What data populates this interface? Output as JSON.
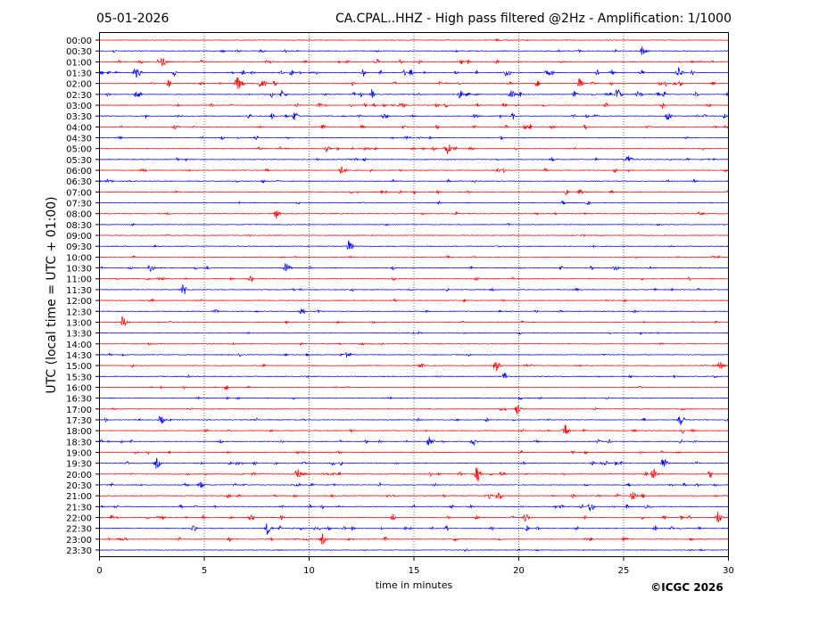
{
  "chart_data": {
    "type": "line",
    "title_left": "05-01-2026",
    "title_right": "CA.CPAL..HHZ - High pass filtered @2Hz - Amplification: 1/1000",
    "xlabel": "time in minutes",
    "ylabel": "UTC (local time = UTC + 01:00)",
    "xlim": [
      0,
      30
    ],
    "x_ticks": [
      "0",
      "5",
      "10",
      "15",
      "20",
      "25",
      "30"
    ],
    "grid_minutes": [
      5,
      10,
      15,
      20,
      25
    ],
    "row_labels": [
      "00:00",
      "00:30",
      "01:00",
      "01:30",
      "02:00",
      "02:30",
      "03:00",
      "03:30",
      "04:00",
      "04:30",
      "05:00",
      "05:30",
      "06:00",
      "06:30",
      "07:00",
      "07:30",
      "08:00",
      "08:30",
      "09:00",
      "09:30",
      "10:00",
      "10:30",
      "11:00",
      "11:30",
      "12:00",
      "12:30",
      "13:00",
      "13:30",
      "14:00",
      "14:30",
      "15:00",
      "15:30",
      "16:00",
      "16:30",
      "17:00",
      "17:30",
      "18:00",
      "18:30",
      "19:00",
      "19:30",
      "20:00",
      "20:30",
      "21:00",
      "21:30",
      "22:00",
      "22:30",
      "23:00",
      "23:30"
    ],
    "row_activity": [
      0.1,
      0.5,
      0.9,
      1.3,
      1.1,
      1.3,
      1.0,
      0.9,
      0.8,
      0.5,
      0.7,
      0.6,
      0.6,
      0.5,
      0.5,
      0.3,
      0.3,
      0.15,
      0.1,
      0.15,
      0.4,
      0.6,
      0.6,
      0.4,
      0.3,
      0.4,
      0.4,
      0.3,
      0.3,
      0.3,
      0.4,
      0.3,
      0.4,
      0.3,
      0.3,
      0.5,
      0.5,
      0.7,
      0.6,
      0.8,
      0.9,
      0.7,
      0.7,
      0.8,
      0.9,
      0.9,
      0.8,
      0.3
    ],
    "events": [
      {
        "row": 1,
        "minute": 25.9,
        "amp": 5
      },
      {
        "row": 2,
        "minute": 3.0,
        "amp": 5
      },
      {
        "row": 3,
        "minute": 1.7,
        "amp": 6
      },
      {
        "row": 3,
        "minute": 27.6,
        "amp": 6
      },
      {
        "row": 4,
        "minute": 6.6,
        "amp": 6
      },
      {
        "row": 4,
        "minute": 22.9,
        "amp": 5
      },
      {
        "row": 5,
        "minute": 19.6,
        "amp": 6
      },
      {
        "row": 5,
        "minute": 24.7,
        "amp": 7
      },
      {
        "row": 7,
        "minute": 27.1,
        "amp": 6
      },
      {
        "row": 7,
        "minute": 9.3,
        "amp": 5
      },
      {
        "row": 10,
        "minute": 16.6,
        "amp": 6
      },
      {
        "row": 10,
        "minute": 10.8,
        "amp": 4
      },
      {
        "row": 11,
        "minute": 25.2,
        "amp": 5
      },
      {
        "row": 12,
        "minute": 11.5,
        "amp": 5
      },
      {
        "row": 14,
        "minute": 22.9,
        "amp": 4
      },
      {
        "row": 16,
        "minute": 8.4,
        "amp": 6
      },
      {
        "row": 19,
        "minute": 11.9,
        "amp": 8
      },
      {
        "row": 21,
        "minute": 2.4,
        "amp": 5
      },
      {
        "row": 21,
        "minute": 8.9,
        "amp": 6
      },
      {
        "row": 23,
        "minute": 4.0,
        "amp": 6
      },
      {
        "row": 25,
        "minute": 9.6,
        "amp": 4
      },
      {
        "row": 26,
        "minute": 1.1,
        "amp": 7
      },
      {
        "row": 29,
        "minute": 11.8,
        "amp": 4
      },
      {
        "row": 30,
        "minute": 18.9,
        "amp": 9
      },
      {
        "row": 30,
        "minute": 29.6,
        "amp": 5
      },
      {
        "row": 31,
        "minute": 19.3,
        "amp": 4
      },
      {
        "row": 34,
        "minute": 19.9,
        "amp": 6
      },
      {
        "row": 35,
        "minute": 2.9,
        "amp": 5
      },
      {
        "row": 35,
        "minute": 27.7,
        "amp": 6
      },
      {
        "row": 36,
        "minute": 22.2,
        "amp": 8
      },
      {
        "row": 37,
        "minute": 15.7,
        "amp": 6
      },
      {
        "row": 37,
        "minute": 17.8,
        "amp": 5
      },
      {
        "row": 39,
        "minute": 2.7,
        "amp": 6
      },
      {
        "row": 39,
        "minute": 26.9,
        "amp": 6
      },
      {
        "row": 40,
        "minute": 9.4,
        "amp": 7
      },
      {
        "row": 40,
        "minute": 18.0,
        "amp": 8
      },
      {
        "row": 40,
        "minute": 26.4,
        "amp": 6
      },
      {
        "row": 41,
        "minute": 4.8,
        "amp": 4
      },
      {
        "row": 42,
        "minute": 25.4,
        "amp": 5
      },
      {
        "row": 42,
        "minute": 19.0,
        "amp": 5
      },
      {
        "row": 43,
        "minute": 23.4,
        "amp": 6
      },
      {
        "row": 44,
        "minute": 29.5,
        "amp": 7
      },
      {
        "row": 44,
        "minute": 20.3,
        "amp": 5
      },
      {
        "row": 45,
        "minute": 8.0,
        "amp": 7
      },
      {
        "row": 46,
        "minute": 10.6,
        "amp": 4
      }
    ],
    "colors": {
      "even_rows": "#ff0000",
      "odd_rows": "#0000ff"
    }
  },
  "footer": {
    "copyright": "©ICGC 2026"
  }
}
